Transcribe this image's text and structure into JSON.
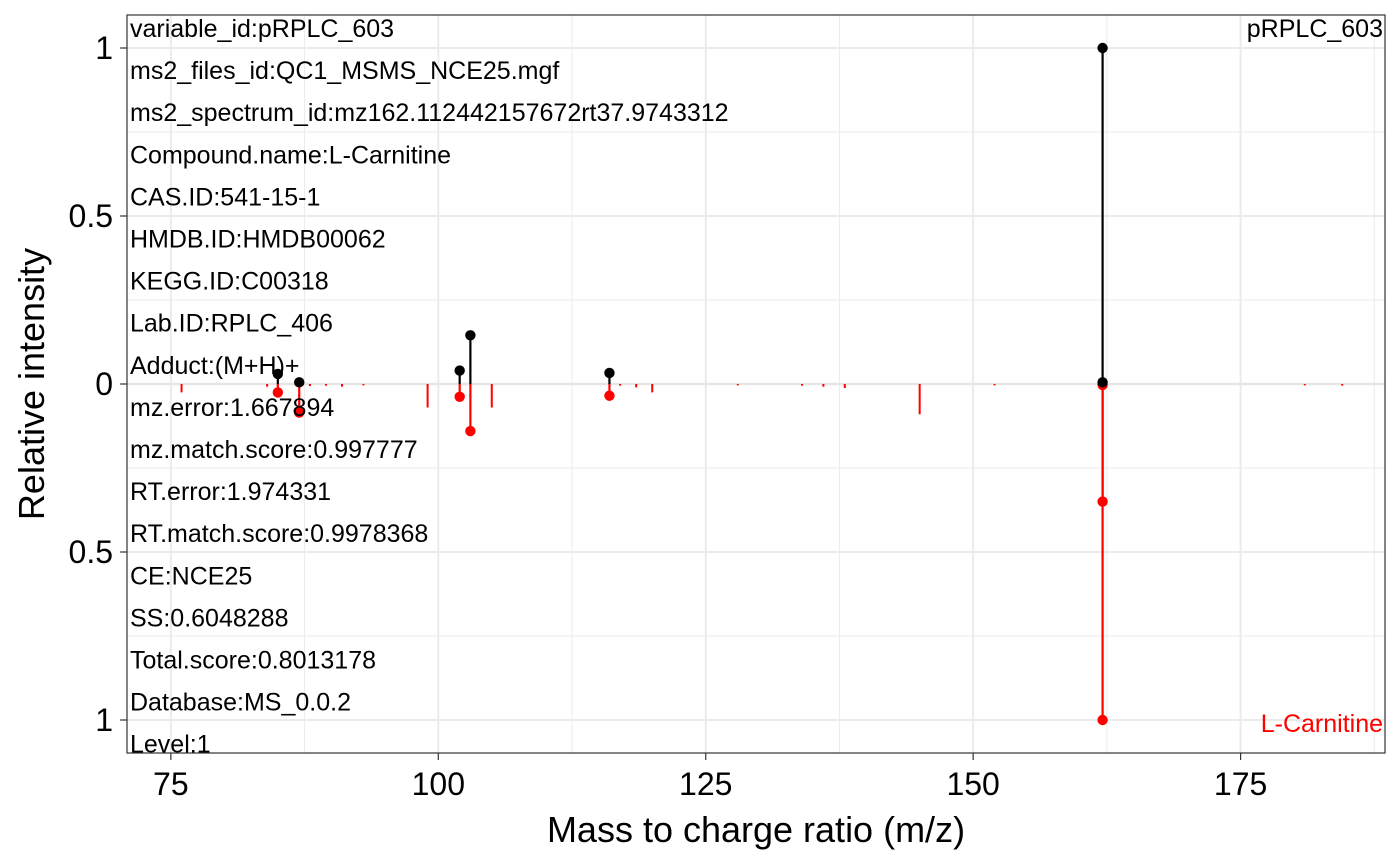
{
  "chart_data": {
    "type": "mirror-spectrum",
    "xlabel": "Mass to charge ratio (m/z)",
    "ylabel": "Relative intensity",
    "xlim": [
      70.9,
      188.5
    ],
    "x_ticks": [
      75,
      100,
      125,
      150,
      175
    ],
    "y_ticks_top": [
      {
        "value": 1,
        "label": "1"
      },
      {
        "value": 0.5,
        "label": "0.5"
      },
      {
        "value": 0,
        "label": "0"
      }
    ],
    "y_ticks_bottom": [
      {
        "value": 0.5,
        "label": "0.5"
      },
      {
        "value": 1,
        "label": "1"
      }
    ],
    "grid": true,
    "experimental": {
      "label": "pRPLC_603",
      "color": "#000000",
      "matched": [
        {
          "mz": 85.0,
          "intensity": 0.03
        },
        {
          "mz": 87.0,
          "intensity": 0.005
        },
        {
          "mz": 102.0,
          "intensity": 0.04
        },
        {
          "mz": 103.0,
          "intensity": 0.145
        },
        {
          "mz": 116.0,
          "intensity": 0.033
        },
        {
          "mz": 162.1,
          "intensity": 1.0
        },
        {
          "mz": 162.1,
          "intensity": 0.005
        }
      ]
    },
    "library": {
      "label": "L-Carnitine",
      "color": "#ff0000",
      "matched": [
        {
          "mz": 85.0,
          "intensity": 0.025
        },
        {
          "mz": 87.0,
          "intensity": 0.085
        },
        {
          "mz": 102.0,
          "intensity": 0.038
        },
        {
          "mz": 103.0,
          "intensity": 0.14
        },
        {
          "mz": 116.0,
          "intensity": 0.035
        },
        {
          "mz": 162.1,
          "intensity": 1.0
        },
        {
          "mz": 162.1,
          "intensity": 0.35
        },
        {
          "mz": 162.1,
          "intensity": 0.003
        }
      ],
      "unmatched": [
        {
          "mz": 76.0,
          "intensity": 0.025
        },
        {
          "mz": 84.0,
          "intensity": 0.008
        },
        {
          "mz": 88.0,
          "intensity": 0.006
        },
        {
          "mz": 89.5,
          "intensity": 0.005
        },
        {
          "mz": 91.0,
          "intensity": 0.008
        },
        {
          "mz": 93.0,
          "intensity": 0.004
        },
        {
          "mz": 99.0,
          "intensity": 0.07
        },
        {
          "mz": 105.0,
          "intensity": 0.07
        },
        {
          "mz": 117.0,
          "intensity": 0.005
        },
        {
          "mz": 118.5,
          "intensity": 0.01
        },
        {
          "mz": 120.0,
          "intensity": 0.025
        },
        {
          "mz": 128.0,
          "intensity": 0.004
        },
        {
          "mz": 134.0,
          "intensity": 0.005
        },
        {
          "mz": 136.0,
          "intensity": 0.008
        },
        {
          "mz": 138.0,
          "intensity": 0.012
        },
        {
          "mz": 145.0,
          "intensity": 0.09
        },
        {
          "mz": 152.0,
          "intensity": 0.004
        },
        {
          "mz": 181.0,
          "intensity": 0.004
        },
        {
          "mz": 184.5,
          "intensity": 0.005
        }
      ]
    },
    "annotations": [
      "variable_id:pRPLC_603",
      "ms2_files_id:QC1_MSMS_NCE25.mgf",
      "ms2_spectrum_id:mz162.112442157672rt37.9743312",
      "Compound.name:L-Carnitine",
      "CAS.ID:541-15-1",
      "HMDB.ID:HMDB00062",
      "KEGG.ID:C00318",
      "Lab.ID:RPLC_406",
      "Adduct:(M+H)+",
      "mz.error:1.667894",
      "mz.match.score:0.997777",
      "RT.error:1.974331",
      "RT.match.score:0.9978368",
      "CE:NCE25",
      "SS:0.6048288",
      "Total.score:0.8013178",
      "Database:MS_0.0.2",
      "Level:1"
    ]
  }
}
